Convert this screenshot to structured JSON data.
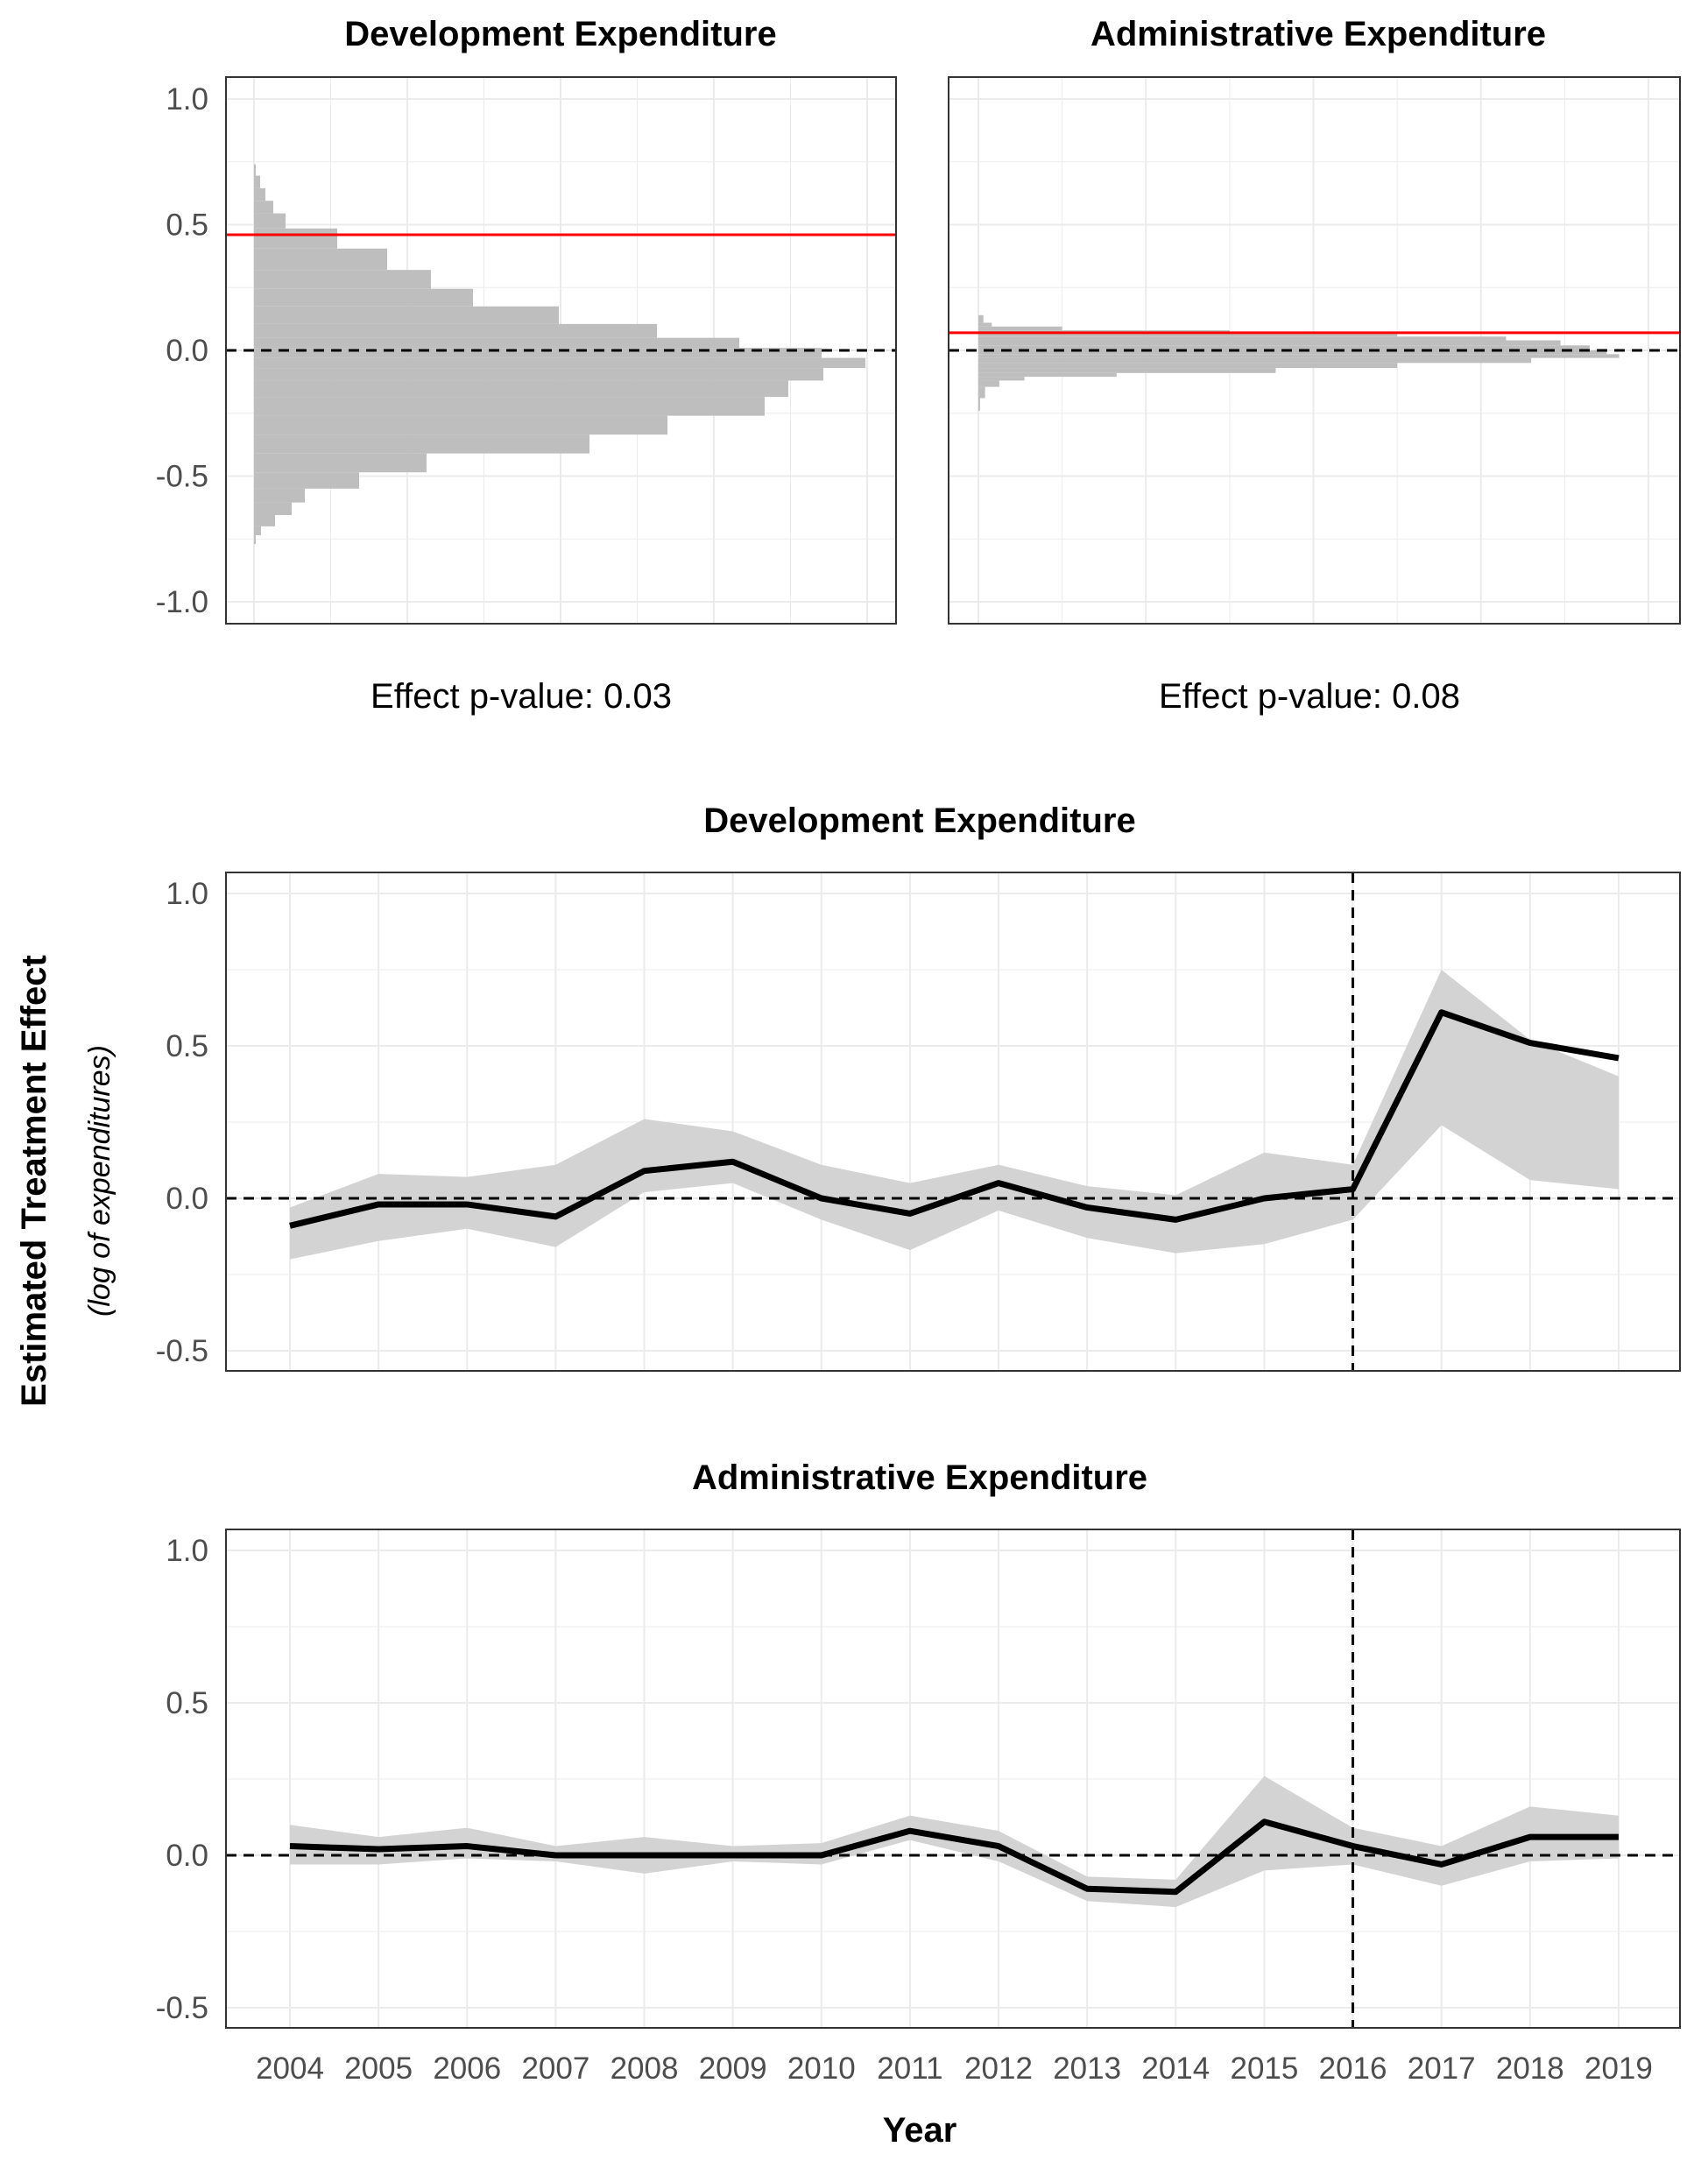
{
  "chart_data": [
    {
      "type": "histogram",
      "title": "Development Expenditure",
      "ylim": [
        -1.0,
        1.0
      ],
      "yticks": [
        "1.0",
        "0.5",
        "0.0",
        "-0.5",
        "-1.0"
      ],
      "effect_line": 0.46,
      "reference_line": 0.0,
      "annotation": "Effect p-value:  0.03",
      "bins": [
        {
          "y": 0.72,
          "count": 0.2
        },
        {
          "y": 0.67,
          "count": 0.7
        },
        {
          "y": 0.62,
          "count": 1.3
        },
        {
          "y": 0.57,
          "count": 2.2
        },
        {
          "y": 0.52,
          "count": 3.6
        },
        {
          "y": 0.45,
          "count": 9.5
        },
        {
          "y": 0.36,
          "count": 15.2
        },
        {
          "y": 0.28,
          "count": 20.2
        },
        {
          "y": 0.21,
          "count": 25.0
        },
        {
          "y": 0.14,
          "count": 34.8
        },
        {
          "y": 0.07,
          "count": 46.0
        },
        {
          "y": 0.03,
          "count": 55.4
        },
        {
          "y": -0.01,
          "count": 64.8
        },
        {
          "y": -0.05,
          "count": 69.8
        },
        {
          "y": -0.09,
          "count": 65.0
        },
        {
          "y": -0.15,
          "count": 61.0
        },
        {
          "y": -0.22,
          "count": 58.3
        },
        {
          "y": -0.3,
          "count": 47.2
        },
        {
          "y": -0.37,
          "count": 38.3
        },
        {
          "y": -0.45,
          "count": 19.7
        },
        {
          "y": -0.52,
          "count": 12.0
        },
        {
          "y": -0.58,
          "count": 5.8
        },
        {
          "y": -0.63,
          "count": 4.3
        },
        {
          "y": -0.68,
          "count": 2.4
        },
        {
          "y": -0.72,
          "count": 0.8
        },
        {
          "y": -0.75,
          "count": 0.2
        }
      ]
    },
    {
      "type": "histogram",
      "title": "Administrative Expenditure",
      "ylim": [
        -1.0,
        1.0
      ],
      "yticks": [
        "1.0",
        "0.5",
        "0.0",
        "-0.5",
        "-1.0"
      ],
      "effect_line": 0.07,
      "reference_line": 0.0,
      "annotation": "Effect p-value:  0.08",
      "bins": [
        {
          "y": 0.12,
          "count": 0.6
        },
        {
          "y": 0.1,
          "count": 1.6
        },
        {
          "y": 0.09,
          "count": 10.0
        },
        {
          "y": 0.07,
          "count": 30.0
        },
        {
          "y": 0.06,
          "count": 50.0
        },
        {
          "y": 0.05,
          "count": 63.0
        },
        {
          "y": 0.03,
          "count": 69.5
        },
        {
          "y": 0.01,
          "count": 73.0
        },
        {
          "y": -0.01,
          "count": 75.0
        },
        {
          "y": -0.02,
          "count": 76.5
        },
        {
          "y": -0.04,
          "count": 66.0
        },
        {
          "y": -0.06,
          "count": 50.0
        },
        {
          "y": -0.08,
          "count": 35.5
        },
        {
          "y": -0.1,
          "count": 16.5
        },
        {
          "y": -0.11,
          "count": 5.5
        },
        {
          "y": -0.13,
          "count": 2.5
        },
        {
          "y": -0.16,
          "count": 0.8
        },
        {
          "y": -0.22,
          "count": 0.2
        }
      ]
    },
    {
      "type": "line",
      "title": "Development Expenditure",
      "ylim": [
        -0.5,
        1.0
      ],
      "yticks": [
        "1.0",
        "0.5",
        "0.0",
        "-0.5"
      ],
      "treatment_year": 2016,
      "x": [
        2004,
        2005,
        2006,
        2007,
        2008,
        2009,
        2010,
        2011,
        2012,
        2013,
        2014,
        2015,
        2016,
        2017,
        2018,
        2019
      ],
      "estimate": [
        -0.09,
        -0.02,
        -0.02,
        -0.06,
        0.09,
        0.12,
        0.0,
        -0.05,
        0.05,
        -0.03,
        -0.07,
        0.0,
        0.03,
        0.61,
        0.51,
        0.46
      ],
      "lower": [
        -0.2,
        -0.14,
        -0.1,
        -0.16,
        0.02,
        0.05,
        -0.07,
        -0.17,
        -0.04,
        -0.13,
        -0.18,
        -0.15,
        -0.07,
        0.24,
        0.06,
        0.03
      ],
      "upper": [
        -0.03,
        0.08,
        0.07,
        0.11,
        0.26,
        0.22,
        0.11,
        0.05,
        0.11,
        0.04,
        0.01,
        0.15,
        0.11,
        0.75,
        0.52,
        0.4
      ]
    },
    {
      "type": "line",
      "title": "Administrative Expenditure",
      "ylim": [
        -0.5,
        1.0
      ],
      "yticks": [
        "1.0",
        "0.5",
        "0.0",
        "-0.5"
      ],
      "treatment_year": 2016,
      "xlabel": "Year",
      "x": [
        2004,
        2005,
        2006,
        2007,
        2008,
        2009,
        2010,
        2011,
        2012,
        2013,
        2014,
        2015,
        2016,
        2017,
        2018,
        2019
      ],
      "estimate": [
        0.03,
        0.02,
        0.03,
        0.0,
        0.0,
        0.0,
        0.0,
        0.08,
        0.03,
        -0.11,
        -0.12,
        0.11,
        0.03,
        -0.03,
        0.06,
        0.06
      ],
      "lower": [
        -0.03,
        -0.03,
        -0.01,
        -0.02,
        -0.06,
        -0.02,
        -0.03,
        0.05,
        -0.02,
        -0.15,
        -0.17,
        -0.05,
        -0.03,
        -0.1,
        -0.02,
        -0.01
      ],
      "upper": [
        0.1,
        0.06,
        0.09,
        0.03,
        0.06,
        0.03,
        0.04,
        0.13,
        0.08,
        -0.07,
        -0.08,
        0.26,
        0.09,
        0.03,
        0.16,
        0.13
      ]
    }
  ],
  "shared_ylabel": "Estimated Treatment Effect",
  "shared_ylabel_sub": "(log of expenditures)"
}
